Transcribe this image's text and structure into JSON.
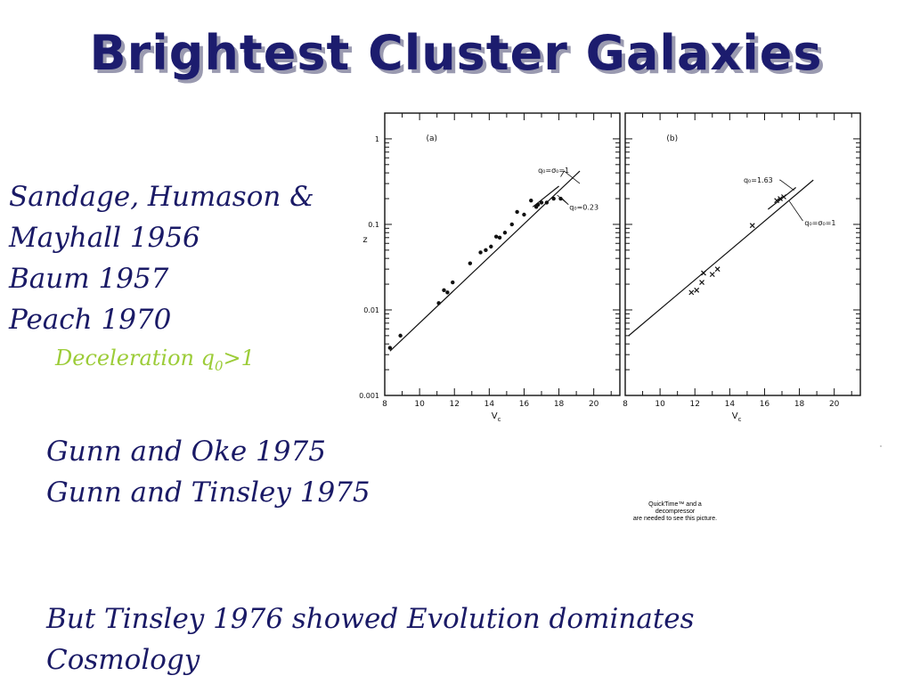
{
  "slide": {
    "title": "Brightest Cluster Galaxies",
    "refs": [
      "Sandage, Humason &",
      "Mayhall 1956",
      "Baum 1957",
      "Peach 1970"
    ],
    "deceleration": {
      "prefix": "Deceleration  q",
      "sub": "0",
      "suffix": ">1"
    },
    "gunn": [
      "Gunn and Oke 1975",
      "Gunn and Tinsley 1975"
    ],
    "tinsley": [
      "But Tinsley 1976 showed Evolution dominates",
      "Cosmology"
    ],
    "quicktime_notice": [
      "QuickTime™ and a",
      "decompressor",
      "are needed to see this picture."
    ]
  },
  "chart_data": [
    {
      "type": "scatter",
      "panel_label": "(a)",
      "xlabel": "V",
      "xlabel_sub": "c",
      "ylabel": "z",
      "x_scale": "linear",
      "y_scale": "log",
      "xlim": [
        8,
        21.5
      ],
      "ylim": [
        0.001,
        2
      ],
      "x_ticks": [
        8,
        10,
        12,
        14,
        16,
        18,
        20
      ],
      "y_ticks": [
        {
          "value": 0.001,
          "label": "0.001"
        },
        {
          "value": 0.01,
          "label": "0.01"
        },
        {
          "value": 0.1,
          "label": "0.1"
        },
        {
          "value": 1,
          "label": "1"
        }
      ],
      "marker": "dot",
      "points": [
        [
          8.3,
          0.0036
        ],
        [
          8.9,
          0.005
        ],
        [
          11.1,
          0.012
        ],
        [
          11.4,
          0.017
        ],
        [
          11.6,
          0.016
        ],
        [
          11.9,
          0.021
        ],
        [
          12.9,
          0.035
        ],
        [
          13.5,
          0.047
        ],
        [
          13.8,
          0.05
        ],
        [
          14.1,
          0.055
        ],
        [
          14.4,
          0.072
        ],
        [
          14.6,
          0.07
        ],
        [
          14.9,
          0.08
        ],
        [
          15.3,
          0.1
        ],
        [
          15.6,
          0.14
        ],
        [
          16.0,
          0.13
        ],
        [
          16.4,
          0.19
        ],
        [
          16.7,
          0.16
        ],
        [
          16.8,
          0.17
        ],
        [
          17.0,
          0.18
        ],
        [
          17.3,
          0.18
        ],
        [
          17.7,
          0.2
        ],
        [
          18.1,
          0.2
        ]
      ],
      "series": [
        {
          "name": "q₀=σ₀=1",
          "x": [
            8.3,
            19.2
          ],
          "y": [
            0.0033,
            0.42
          ]
        },
        {
          "name": "q₀=0.23",
          "x": [
            16.5,
            18.0
          ],
          "y": [
            0.16,
            0.28
          ]
        }
      ]
    },
    {
      "type": "scatter",
      "panel_label": "(b)",
      "xlabel": "V",
      "xlabel_sub": "c",
      "x_scale": "linear",
      "y_scale": "log",
      "xlim": [
        8,
        21.5
      ],
      "ylim": [
        0.001,
        2
      ],
      "x_ticks": [
        8,
        10,
        12,
        14,
        16,
        18,
        20
      ],
      "marker": "x",
      "points": [
        [
          11.8,
          0.016
        ],
        [
          12.1,
          0.017
        ],
        [
          12.4,
          0.021
        ],
        [
          12.5,
          0.027
        ],
        [
          13.0,
          0.026
        ],
        [
          13.3,
          0.03
        ],
        [
          15.3,
          0.097
        ],
        [
          16.7,
          0.19
        ],
        [
          16.9,
          0.2
        ],
        [
          17.1,
          0.21
        ]
      ],
      "series": [
        {
          "name": "q₀=1.63",
          "x": [
            8.2,
            18.8
          ],
          "y": [
            0.005,
            0.33
          ]
        },
        {
          "name": "q₀=σ₀=1",
          "x": [
            16.2,
            17.8
          ],
          "y": [
            0.15,
            0.27
          ]
        }
      ]
    }
  ]
}
